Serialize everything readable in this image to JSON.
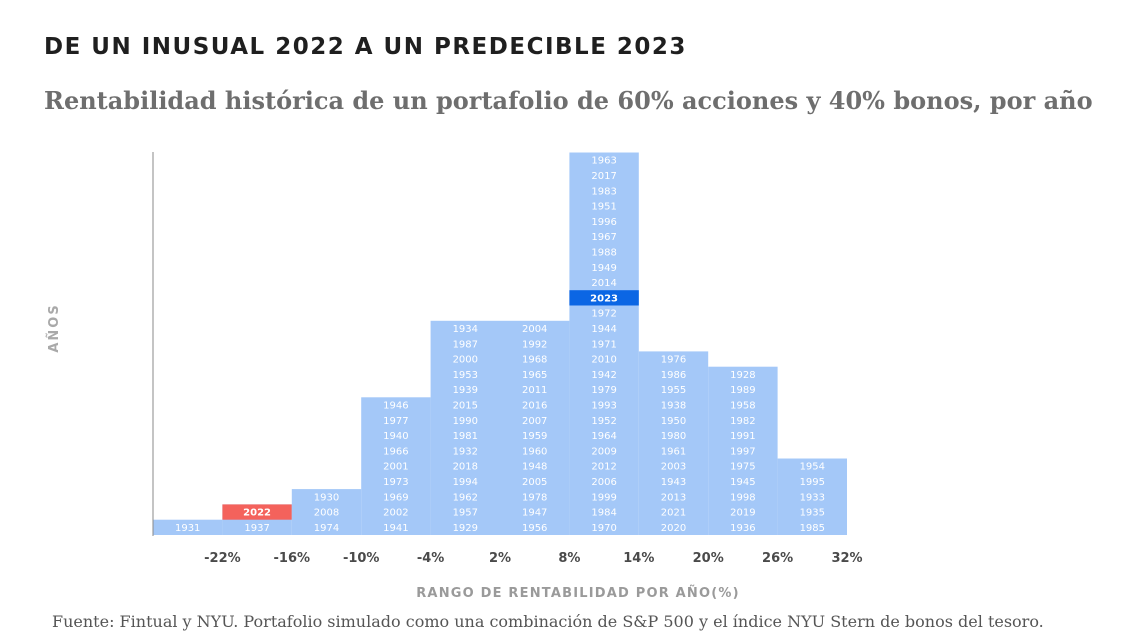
{
  "header": {
    "title": "DE UN INUSUAL 2022 A UN PREDECIBLE 2023",
    "subtitle": "Rentabilidad histórica de un portafolio de 60% acciones y 40% bonos, por año"
  },
  "footer": {
    "source": "Fuente: Fintual y NYU. Portafolio simulado como una combinación de S&P 500 y el índice NYU Stern de bonos del tesoro."
  },
  "colors": {
    "bar": "#a4c8f8",
    "highlight_2022": "#f4625c",
    "highlight_2023": "#0b66e4",
    "axis_text": "#9a9a9a",
    "tick_text": "#4a4a4a"
  },
  "chart_data": {
    "type": "bar",
    "title": "Rentabilidad histórica de un portafolio de 60% acciones y 40% bonos, por año",
    "xlabel": "RANGO DE RENTABILIDAD POR AÑO(%)",
    "ylabel": "AÑOS",
    "x_ticks": [
      "-22%",
      "-16%",
      "-10%",
      "-4%",
      "2%",
      "8%",
      "14%",
      "20%",
      "26%",
      "32%"
    ],
    "bins": [
      {
        "from": -28,
        "to": -22,
        "years": [
          "1931"
        ]
      },
      {
        "from": -22,
        "to": -16,
        "years": [
          "1937",
          "2022"
        ]
      },
      {
        "from": -16,
        "to": -10,
        "years": [
          "1974",
          "2008",
          "1930"
        ]
      },
      {
        "from": -10,
        "to": -4,
        "years": [
          "1941",
          "2002",
          "1969",
          "1973",
          "2001",
          "1966",
          "1940",
          "1977",
          "1946"
        ]
      },
      {
        "from": -4,
        "to": 2,
        "years": [
          "1929",
          "1957",
          "1962",
          "1994",
          "2018",
          "1932",
          "1981",
          "1990",
          "2015",
          "1939",
          "1953",
          "2000",
          "1987",
          "1934"
        ]
      },
      {
        "from": 2,
        "to": 8,
        "years": [
          "1956",
          "1947",
          "1978",
          "2005",
          "1948",
          "1960",
          "1959",
          "2007",
          "2016",
          "2011",
          "1965",
          "1968",
          "1992",
          "2004"
        ]
      },
      {
        "from": 8,
        "to": 14,
        "years": [
          "1970",
          "1984",
          "1999",
          "2006",
          "2012",
          "2009",
          "1964",
          "1952",
          "1993",
          "1979",
          "1942",
          "2010",
          "1971",
          "1944",
          "1972",
          "2023",
          "2014",
          "1949",
          "1988",
          "1967",
          "1996",
          "1951",
          "1983",
          "2017",
          "1963"
        ]
      },
      {
        "from": 14,
        "to": 20,
        "years": [
          "2020",
          "2021",
          "2013",
          "1943",
          "2003",
          "1961",
          "1980",
          "1950",
          "1938",
          "1955",
          "1986",
          "1976"
        ]
      },
      {
        "from": 20,
        "to": 26,
        "years": [
          "1936",
          "2019",
          "1998",
          "1945",
          "1975",
          "1997",
          "1991",
          "1982",
          "1958",
          "1989",
          "1928"
        ]
      },
      {
        "from": 26,
        "to": 32,
        "years": [
          "1985",
          "1935",
          "1933",
          "1995",
          "1954"
        ]
      }
    ],
    "highlights": {
      "2022": "highlight_2022",
      "2023": "highlight_2023"
    },
    "ylim": [
      0,
      25
    ],
    "grid": false,
    "legend": "none"
  }
}
